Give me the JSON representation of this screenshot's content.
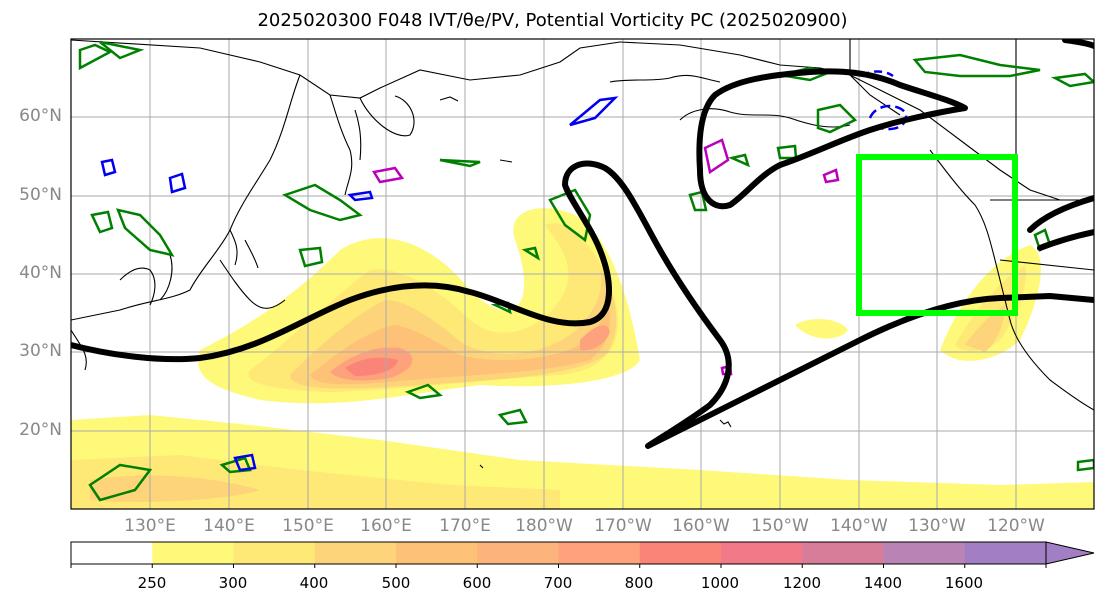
{
  "title": "2025020300 F048 IVT/θe/PV, Potential Vorticity PC (2025020900)",
  "lat_labels": [
    "60°N",
    "50°N",
    "40°N",
    "30°N",
    "20°N"
  ],
  "lon_labels": [
    "130°E",
    "140°E",
    "150°E",
    "160°E",
    "170°E",
    "180°W",
    "170°W",
    "160°W",
    "150°W",
    "140°W",
    "130°W",
    "120°W"
  ],
  "colorbar": {
    "levels": [
      "250",
      "300",
      "400",
      "500",
      "600",
      "700",
      "800",
      "1000",
      "1200",
      "1400",
      "1600"
    ],
    "colors": [
      "#ffffff",
      "#fff97a",
      "#fee876",
      "#fdd479",
      "#fdc178",
      "#fdb47c",
      "#fea27d",
      "#f98477",
      "#f07a88",
      "#d77c99",
      "#b984b5",
      "#a27ec4"
    ]
  },
  "colors": {
    "pv_line": "#000000",
    "box": "#00ff00",
    "contour_green": "#008000",
    "contour_blue": "#0000ee",
    "contour_magenta": "#bb00bb"
  }
}
